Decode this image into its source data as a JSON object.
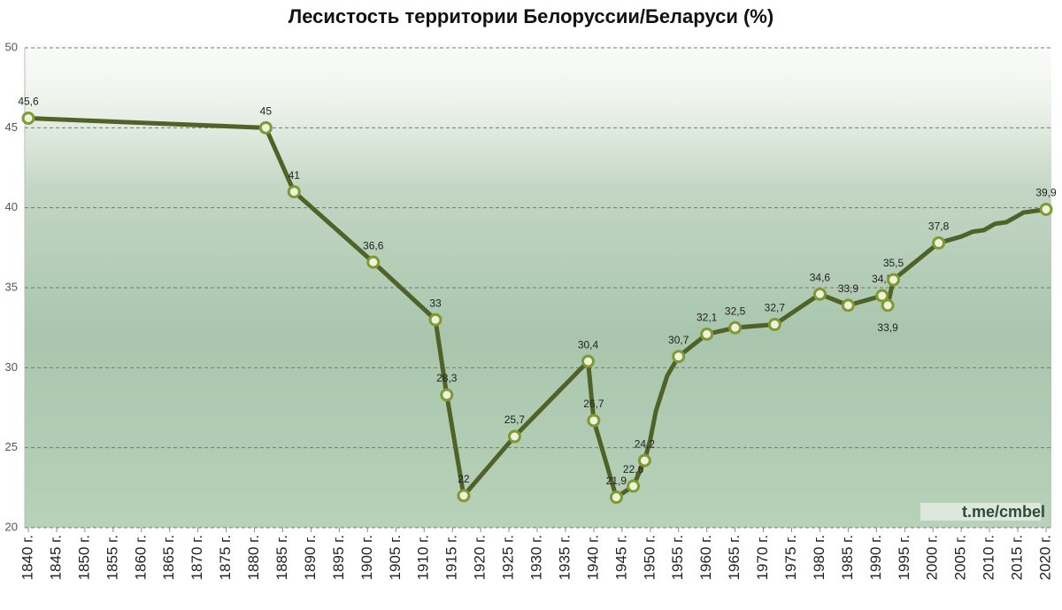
{
  "chart_data": {
    "type": "line",
    "title": "Лесистость территории Белоруссии/Беларуси (%)",
    "watermark": "t.me/cmbel",
    "xlim": [
      1840,
      2020
    ],
    "xticks": [
      {
        "value": 1840,
        "label": "1840 г."
      },
      {
        "value": 1845,
        "label": "1845 г."
      },
      {
        "value": 1850,
        "label": "1850 г."
      },
      {
        "value": 1855,
        "label": "1855 г."
      },
      {
        "value": 1860,
        "label": "1860 г."
      },
      {
        "value": 1865,
        "label": "1865 г."
      },
      {
        "value": 1870,
        "label": "1870 г."
      },
      {
        "value": 1875,
        "label": "1875 г."
      },
      {
        "value": 1880,
        "label": "1880 г."
      },
      {
        "value": 1885,
        "label": "1885 г."
      },
      {
        "value": 1890,
        "label": "1890 г."
      },
      {
        "value": 1895,
        "label": "1895 г."
      },
      {
        "value": 1900,
        "label": "1900 г."
      },
      {
        "value": 1905,
        "label": "1905 г."
      },
      {
        "value": 1910,
        "label": "1910 г."
      },
      {
        "value": 1915,
        "label": "1915 г."
      },
      {
        "value": 1920,
        "label": "1920 г."
      },
      {
        "value": 1925,
        "label": "1925 г."
      },
      {
        "value": 1930,
        "label": "1930 г."
      },
      {
        "value": 1935,
        "label": "1935 г."
      },
      {
        "value": 1940,
        "label": "1940 г."
      },
      {
        "value": 1945,
        "label": "1945 г."
      },
      {
        "value": 1950,
        "label": "1950 г."
      },
      {
        "value": 1955,
        "label": "1955 г."
      },
      {
        "value": 1960,
        "label": "1960 г."
      },
      {
        "value": 1965,
        "label": "1965 г."
      },
      {
        "value": 1970,
        "label": "1970 г."
      },
      {
        "value": 1975,
        "label": "1975 г."
      },
      {
        "value": 1980,
        "label": "1980 г."
      },
      {
        "value": 1985,
        "label": "1985 г."
      },
      {
        "value": 1990,
        "label": "1990 г."
      },
      {
        "value": 1995,
        "label": "1995 г."
      },
      {
        "value": 2000,
        "label": "2000 г."
      },
      {
        "value": 2005,
        "label": "2005 г."
      },
      {
        "value": 2010,
        "label": "2010 г."
      },
      {
        "value": 2015,
        "label": "2015 г."
      },
      {
        "value": 2020,
        "label": "2020 г."
      }
    ],
    "ylim": [
      20,
      50
    ],
    "yticks": [
      20,
      25,
      30,
      35,
      40,
      45,
      50
    ],
    "grid": true,
    "series": [
      {
        "color": "#4f6228",
        "x": [
          1840,
          1882,
          1887,
          1901,
          1912,
          1914,
          1917,
          1926,
          1939,
          1940,
          1944,
          1947,
          1949,
          1950,
          1951,
          1953,
          1955,
          1960,
          1965,
          1972,
          1980,
          1985,
          1991,
          1992,
          1993,
          2001,
          2005,
          2007,
          2009,
          2011,
          2013,
          2016,
          2018,
          2020
        ],
        "values": [
          45.6,
          45,
          41,
          36.6,
          33,
          28.3,
          22,
          25.7,
          30.4,
          26.7,
          21.9,
          22.6,
          24.2,
          25.5,
          27.3,
          29.5,
          30.7,
          32.1,
          32.5,
          32.7,
          34.6,
          33.9,
          34.5,
          33.9,
          35.5,
          37.8,
          38.2,
          38.5,
          38.6,
          39.0,
          39.1,
          39.7,
          39.8,
          39.9
        ],
        "value_labels": [
          "45,6",
          "45",
          "41",
          "36,6",
          "33",
          "28,3",
          "22",
          "25,7",
          "30,4",
          "26,7",
          "21,9",
          "22,6",
          "24,2",
          null,
          null,
          null,
          "30,7",
          "32,1",
          "32,5",
          "32,7",
          "34,6",
          "33,9",
          "34,5",
          "33,9",
          "35,5",
          "37,8",
          null,
          null,
          null,
          null,
          null,
          null,
          null,
          "39,9"
        ]
      }
    ]
  }
}
